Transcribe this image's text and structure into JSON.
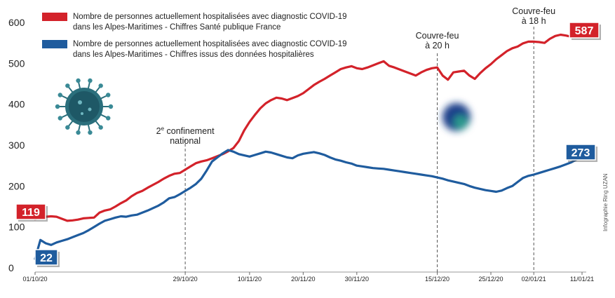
{
  "chart_data": {
    "type": "line",
    "x": [
      "01/10/20",
      "02/10/20",
      "03/10/20",
      "04/10/20",
      "05/10/20",
      "06/10/20",
      "07/10/20",
      "08/10/20",
      "09/10/20",
      "10/10/20",
      "11/10/20",
      "12/10/20",
      "13/10/20",
      "14/10/20",
      "15/10/20",
      "16/10/20",
      "17/10/20",
      "18/10/20",
      "19/10/20",
      "20/10/20",
      "21/10/20",
      "22/10/20",
      "23/10/20",
      "24/10/20",
      "25/10/20",
      "26/10/20",
      "27/10/20",
      "28/10/20",
      "29/10/20",
      "30/10/20",
      "31/10/20",
      "01/11/20",
      "02/11/20",
      "03/11/20",
      "04/11/20",
      "05/11/20",
      "06/11/20",
      "07/11/20",
      "08/11/20",
      "09/11/20",
      "10/11/20",
      "11/11/20",
      "12/11/20",
      "13/11/20",
      "14/11/20",
      "15/11/20",
      "16/11/20",
      "17/11/20",
      "18/11/20",
      "19/11/20",
      "20/11/20",
      "21/11/20",
      "22/11/20",
      "23/11/20",
      "24/11/20",
      "25/11/20",
      "26/11/20",
      "27/11/20",
      "28/11/20",
      "29/11/20",
      "30/11/20",
      "01/12/20",
      "02/12/20",
      "03/12/20",
      "04/12/20",
      "05/12/20",
      "06/12/20",
      "07/12/20",
      "08/12/20",
      "09/12/20",
      "10/12/20",
      "11/12/20",
      "12/12/20",
      "13/12/20",
      "14/12/20",
      "15/12/20",
      "16/12/20",
      "17/12/20",
      "18/12/20",
      "19/12/20",
      "20/12/20",
      "21/12/20",
      "22/12/20",
      "23/12/20",
      "24/12/20",
      "25/12/20",
      "26/12/20",
      "27/12/20",
      "28/12/20",
      "29/12/20",
      "30/12/20",
      "31/12/20",
      "01/01/21",
      "02/01/21",
      "03/01/21",
      "04/01/21",
      "05/01/21",
      "06/01/21",
      "07/01/21",
      "08/01/21",
      "09/01/21",
      "10/01/21",
      "11/01/21"
    ],
    "series": [
      {
        "name": "Nombre de personnes actuellement hospitalisées avec diagnostic COVID-19 dans les Alpes-Maritimes - Chiffres Santé publique France",
        "color": "#d3222a",
        "values": [
          119,
          122,
          125,
          126,
          125,
          120,
          115,
          116,
          118,
          121,
          122,
          123,
          135,
          140,
          143,
          150,
          158,
          165,
          175,
          183,
          188,
          196,
          203,
          210,
          218,
          225,
          230,
          232,
          240,
          248,
          256,
          260,
          263,
          268,
          273,
          278,
          285,
          293,
          310,
          336,
          357,
          374,
          390,
          402,
          410,
          416,
          414,
          410,
          415,
          420,
          427,
          437,
          447,
          455,
          462,
          470,
          478,
          486,
          490,
          493,
          488,
          486,
          490,
          495,
          500,
          505,
          494,
          490,
          485,
          480,
          475,
          470,
          478,
          484,
          488,
          490,
          470,
          460,
          478,
          480,
          482,
          470,
          462,
          476,
          488,
          498,
          510,
          520,
          530,
          537,
          541,
          549,
          553,
          553,
          552,
          550,
          560,
          567,
          570,
          568,
          565,
          575,
          587
        ]
      },
      {
        "name": "Nombre de personnes actuellement hospitalisées avec diagnostic COVID-19 dans les Alpes-Maritimes - Chiffres issus des données hospitalières",
        "color": "#1f5c9e",
        "values": [
          22,
          68,
          60,
          56,
          62,
          66,
          70,
          75,
          80,
          85,
          92,
          100,
          108,
          115,
          119,
          123,
          126,
          125,
          128,
          130,
          135,
          140,
          146,
          152,
          160,
          170,
          173,
          180,
          188,
          196,
          205,
          218,
          238,
          260,
          270,
          280,
          288,
          284,
          278,
          275,
          272,
          276,
          280,
          284,
          282,
          278,
          274,
          270,
          268,
          275,
          279,
          281,
          283,
          280,
          276,
          270,
          265,
          262,
          258,
          255,
          250,
          248,
          246,
          244,
          243,
          242,
          240,
          238,
          236,
          234,
          232,
          230,
          228,
          226,
          224,
          221,
          218,
          214,
          211,
          208,
          205,
          200,
          196,
          193,
          190,
          188,
          186,
          189,
          195,
          200,
          210,
          220,
          225,
          228,
          232,
          236,
          240,
          244,
          248,
          253,
          258,
          265,
          273
        ]
      }
    ],
    "ylim": [
      0,
      620
    ],
    "yticks": [
      "0",
      "100",
      "200",
      "300",
      "400",
      "500",
      "600"
    ],
    "xticks": [
      "01/10/20",
      "29/10/20",
      "10/11/20",
      "20/11/20",
      "30/11/20",
      "15/12/20",
      "25/12/20",
      "02/01/21",
      "11/01/21"
    ],
    "annotations": [
      {
        "x": "29/10/20",
        "line1": "2e confinement",
        "line2": "national"
      },
      {
        "x": "15/12/20",
        "line1": "Couvre-feu",
        "line2": "à 20 h"
      },
      {
        "x": "02/01/21",
        "line1": "Couvre-feu",
        "line2": "à 18 h"
      }
    ],
    "labels": {
      "red_start": "119",
      "red_end": "587",
      "blue_start": "22",
      "blue_end": "273"
    },
    "legend_position": "top-left",
    "grid": false
  },
  "credit": "Infographie Ring UZAN",
  "icons": [
    "virus-icon",
    "blurred-virus-icon"
  ]
}
